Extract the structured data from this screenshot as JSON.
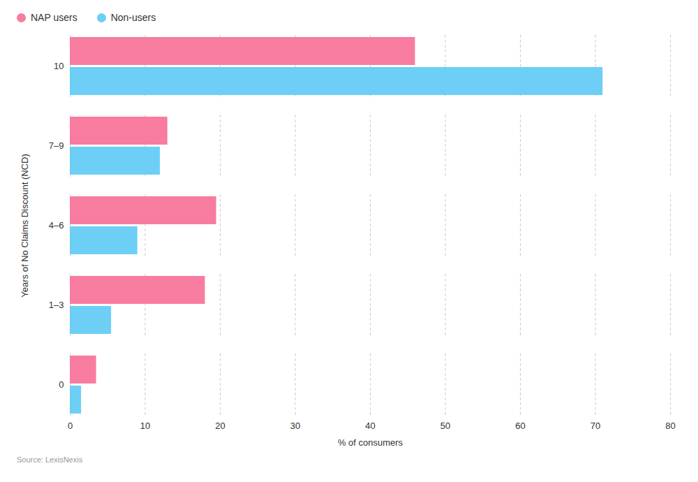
{
  "chart_data": {
    "type": "bar",
    "orientation": "horizontal",
    "categories": [
      "0",
      "1–3",
      "4–6",
      "7–9",
      "10"
    ],
    "series": [
      {
        "name": "NAP users",
        "color": "#F87CA0",
        "values": [
          3.5,
          18.0,
          19.5,
          13.0,
          46.0
        ]
      },
      {
        "name": "Non-users",
        "color": "#6DCFF6",
        "values": [
          1.5,
          5.5,
          9.0,
          12.0,
          71.0
        ]
      }
    ],
    "xlabel": "% of consumers",
    "ylabel": "Years of No Claims Discount (NCD)",
    "xlim": [
      0,
      80
    ],
    "xticks": [
      0,
      10,
      20,
      30,
      40,
      50,
      60,
      70,
      80
    ],
    "grid": true,
    "legend": "upper left",
    "annotations": [
      "Source: LexisNexis"
    ]
  }
}
